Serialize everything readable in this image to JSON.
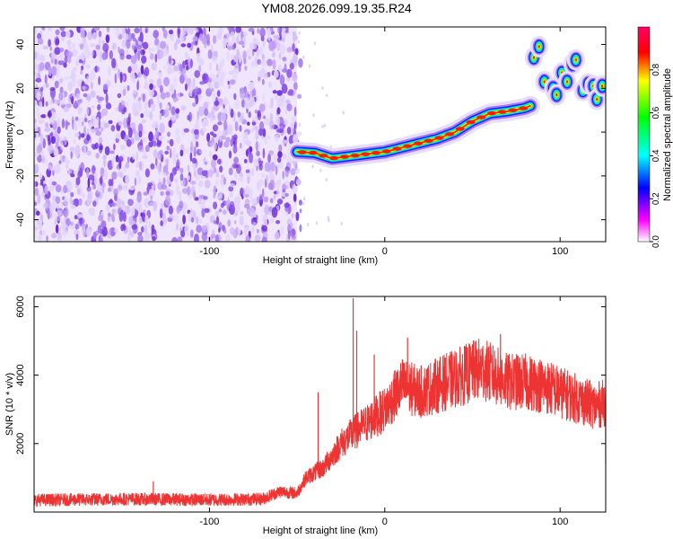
{
  "title": "YM08.2026.099.19.35.R24",
  "chart_data": [
    {
      "type": "heatmap",
      "xlabel": "Height of straight line (km)",
      "ylabel": "Frequency (Hz)",
      "xlim": [
        -200,
        126
      ],
      "ylim": [
        -50,
        48
      ],
      "xticks": [
        -100,
        0,
        100
      ],
      "yticks": [
        -40,
        -20,
        0,
        20,
        40
      ],
      "colorbar": {
        "label": "Normalized spectral amplitude",
        "range": [
          0,
          1
        ],
        "ticks": [
          "0.0",
          "0.2",
          "0.4",
          "0.6",
          "0.8"
        ],
        "colormap": [
          "#ffffff",
          "#ff00ff",
          "#0000ff",
          "#00ffff",
          "#00ff00",
          "#ffff00",
          "#ff0000"
        ]
      },
      "noise_region_x": [
        -200,
        -50
      ],
      "trace": {
        "x": [
          -50,
          -40,
          -30,
          -20,
          -10,
          0,
          10,
          20,
          30,
          40,
          50,
          60,
          70,
          80,
          83
        ],
        "freq": [
          -9,
          -9.5,
          -12,
          -11,
          -10,
          -9,
          -7,
          -5,
          -3,
          0,
          5,
          8.5,
          9.5,
          11,
          12
        ]
      },
      "clusters": [
        {
          "x": 85,
          "freq": 34
        },
        {
          "x": 88,
          "freq": 39
        },
        {
          "x": 91,
          "freq": 23
        },
        {
          "x": 96,
          "freq": 20
        },
        {
          "x": 98,
          "freq": 17
        },
        {
          "x": 101,
          "freq": 27
        },
        {
          "x": 104,
          "freq": 23
        },
        {
          "x": 107,
          "freq": 31
        },
        {
          "x": 109,
          "freq": 33
        },
        {
          "x": 113,
          "freq": 19
        },
        {
          "x": 116,
          "freq": 22
        },
        {
          "x": 119,
          "freq": 21
        },
        {
          "x": 121,
          "freq": 15
        },
        {
          "x": 124,
          "freq": 21
        }
      ]
    },
    {
      "type": "line",
      "xlabel": "Height of straight line (km)",
      "ylabel": "SNR (10 * v/v)",
      "xlim": [
        -200,
        126
      ],
      "ylim": [
        0,
        6300
      ],
      "xticks": [
        -100,
        0,
        100
      ],
      "yticks": [
        2000,
        4000,
        6000
      ],
      "color": "#ee3333",
      "envelope": {
        "x": [
          -200,
          -150,
          -100,
          -70,
          -60,
          -50,
          -45,
          -35,
          -25,
          -18,
          -10,
          0,
          10,
          20,
          30,
          40,
          50,
          55,
          70,
          80,
          90,
          100,
          110,
          120,
          126
        ],
        "y": [
          350,
          380,
          360,
          380,
          600,
          550,
          1000,
          1300,
          2000,
          2300,
          2600,
          3000,
          3700,
          3500,
          3700,
          3900,
          4100,
          4200,
          3800,
          3800,
          3700,
          3500,
          3300,
          3100,
          3200
        ]
      },
      "spikes": [
        {
          "x": -18,
          "y": 6250
        },
        {
          "x": -16,
          "y": 5300
        },
        {
          "x": -38,
          "y": 3500
        },
        {
          "x": -6,
          "y": 4600
        },
        {
          "x": 13,
          "y": 5100
        },
        {
          "x": 50,
          "y": 4900
        },
        {
          "x": 66,
          "y": 5200
        },
        {
          "x": -132,
          "y": 900
        },
        {
          "x": 126,
          "y": 1400
        }
      ]
    }
  ]
}
